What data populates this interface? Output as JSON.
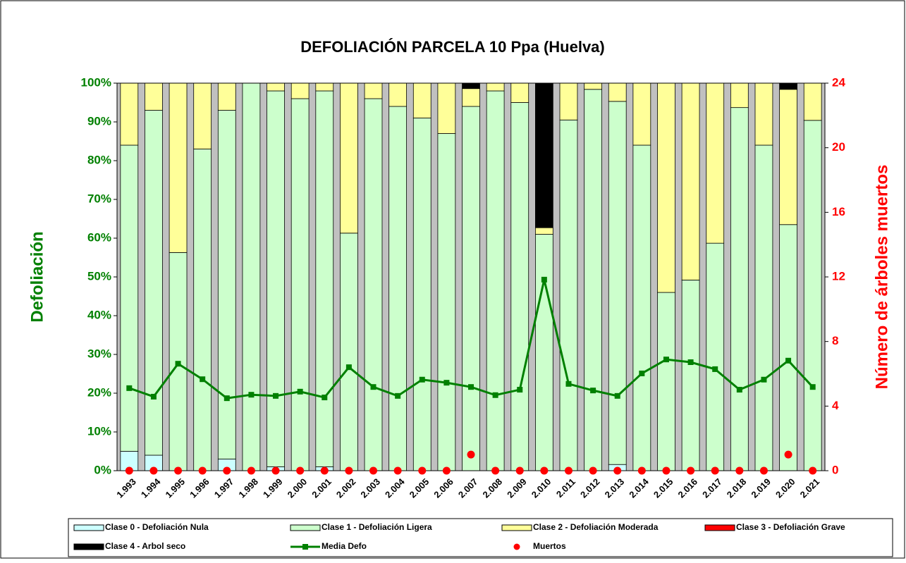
{
  "chart_data": {
    "type": "bar",
    "stacked": true,
    "title": "DEFOLIACIÓN PARCELA 10 Ppa (Huelva)",
    "y_label": "Defoliación",
    "y2_label": "Número de árboles muertos",
    "categories": [
      "1.993",
      "1.994",
      "1.995",
      "1.996",
      "1.997",
      "1.998",
      "1.999",
      "2.000",
      "2.001",
      "2.002",
      "2.003",
      "2.004",
      "2.005",
      "2.006",
      "2.007",
      "2.008",
      "2.009",
      "2.010",
      "2.011",
      "2.012",
      "2.013",
      "2.014",
      "2.015",
      "2.016",
      "2.017",
      "2.018",
      "2.019",
      "2.020",
      "2.021"
    ],
    "series": [
      {
        "name": "Clase 0 - Defoliación Nula",
        "type": "bar",
        "color": "#ccffff",
        "values": [
          5,
          4,
          0,
          0,
          3,
          0,
          1,
          0,
          1,
          0,
          0,
          0,
          0,
          0,
          0,
          0,
          0,
          0,
          0,
          0,
          1.6,
          0,
          0,
          0,
          0,
          0,
          0,
          0,
          0
        ]
      },
      {
        "name": "Clase 1 - Defoliación Ligera",
        "type": "bar",
        "color": "#ccffcc",
        "values": [
          79,
          89,
          56.3,
          83,
          90,
          100,
          97,
          96,
          97,
          61.3,
          96,
          94,
          91,
          87,
          94,
          98,
          95,
          61,
          90.5,
          98.4,
          93.7,
          84,
          46,
          49.2,
          58.7,
          93.7,
          84,
          63.5,
          90.4
        ]
      },
      {
        "name": "Clase 2 - Defoliación Moderada",
        "type": "bar",
        "color": "#ffff99",
        "values": [
          16,
          7,
          43.7,
          17,
          7,
          0,
          2,
          4,
          2,
          38.7,
          4,
          6,
          9,
          13,
          4.6,
          2,
          5,
          1.7,
          9.5,
          1.6,
          4.7,
          16,
          54,
          50.8,
          41.3,
          6.3,
          16,
          34.9,
          9.6
        ]
      },
      {
        "name": "Clase 3 - Defoliación Grave",
        "type": "bar",
        "color": "#ff0000",
        "values": [
          0,
          0,
          0,
          0,
          0,
          0,
          0,
          0,
          0,
          0,
          0,
          0,
          0,
          0,
          0,
          0,
          0,
          0,
          0,
          0,
          0,
          0,
          0,
          0,
          0,
          0,
          0,
          0,
          0
        ]
      },
      {
        "name": "Clase 4 - Arbol seco",
        "type": "bar",
        "color": "#000000",
        "values": [
          0,
          0,
          0,
          0,
          0,
          0,
          0,
          0,
          0,
          0,
          0,
          0,
          0,
          0,
          1.4,
          0,
          0,
          37.3,
          0,
          0,
          0,
          0,
          0,
          0,
          0,
          0,
          0,
          1.6,
          0
        ]
      },
      {
        "name": "Media Defo",
        "type": "line",
        "color": "#008000",
        "values": [
          21.3,
          19.1,
          27.6,
          23.6,
          18.7,
          19.6,
          19.3,
          20.4,
          18.9,
          26.7,
          21.6,
          19.3,
          23.5,
          22.7,
          21.6,
          19.5,
          20.9,
          49.3,
          22.4,
          20.7,
          19.3,
          25.1,
          28.7,
          28.0,
          26.2,
          20.9,
          23.5,
          28.4,
          21.6
        ]
      },
      {
        "name": "Muertos",
        "type": "scatter",
        "axis": "y2",
        "color": "#ff0000",
        "values": [
          0,
          0,
          0,
          0,
          0,
          0,
          0,
          0,
          0,
          0,
          0,
          0,
          0,
          0,
          1,
          0,
          0,
          0,
          0,
          0,
          0,
          0,
          0,
          0,
          0,
          0,
          0,
          1,
          0
        ]
      }
    ],
    "ylim": [
      0,
      100
    ],
    "yticks": [
      {
        "value": 0,
        "label": "0%"
      },
      {
        "value": 10,
        "label": "10%"
      },
      {
        "value": 20,
        "label": "20%"
      },
      {
        "value": 30,
        "label": "30%"
      },
      {
        "value": 40,
        "label": "40%"
      },
      {
        "value": 50,
        "label": "50%"
      },
      {
        "value": 60,
        "label": "60%"
      },
      {
        "value": 70,
        "label": "70%"
      },
      {
        "value": 80,
        "label": "80%"
      },
      {
        "value": 90,
        "label": "90%"
      },
      {
        "value": 100,
        "label": "100%"
      }
    ],
    "y2lim": [
      0,
      24
    ],
    "y2ticks": [
      0,
      4,
      8,
      12,
      16,
      20,
      24
    ],
    "plot_background": "#c0c0c0",
    "y_color": "#008000",
    "y2_color": "#ff0000"
  }
}
